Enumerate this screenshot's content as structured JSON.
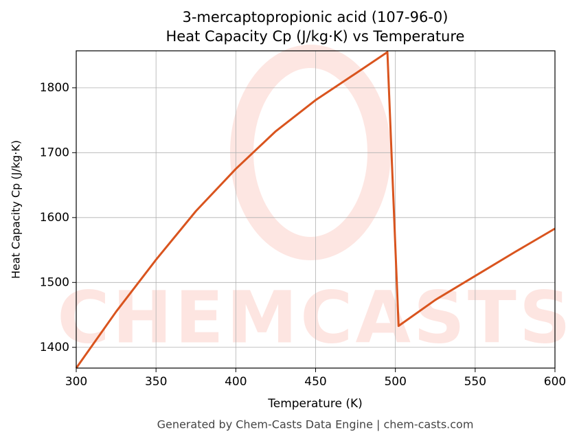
{
  "chart_data": {
    "type": "line",
    "title": "3-mercaptopropionic acid (107-96-0)",
    "subtitle": "Heat Capacity Cp (J/kg·K) vs Temperature",
    "x_label": "Temperature (K)",
    "y_label": "Heat Capacity Cp (J/kg·K)",
    "footer": "Generated by Chem-Casts Data Engine | chem-casts.com",
    "x": [
      300,
      325,
      350,
      375,
      400,
      425,
      450,
      475,
      495,
      502,
      525,
      550,
      575,
      600
    ],
    "series": [
      {
        "name": "Cp",
        "color": "#d9541e",
        "values": [
          1368,
          1455,
          1535,
          1610,
          1675,
          1733,
          1781,
          1822,
          1855,
          1433,
          1473,
          1510,
          1547,
          1583
        ]
      }
    ],
    "xlim": [
      300,
      600
    ],
    "xticks": [
      300,
      350,
      400,
      450,
      500,
      550,
      600
    ],
    "ylim": [
      1368,
      1857
    ],
    "yticks": [
      1400,
      1500,
      1600,
      1700,
      1800
    ],
    "grid": true
  }
}
